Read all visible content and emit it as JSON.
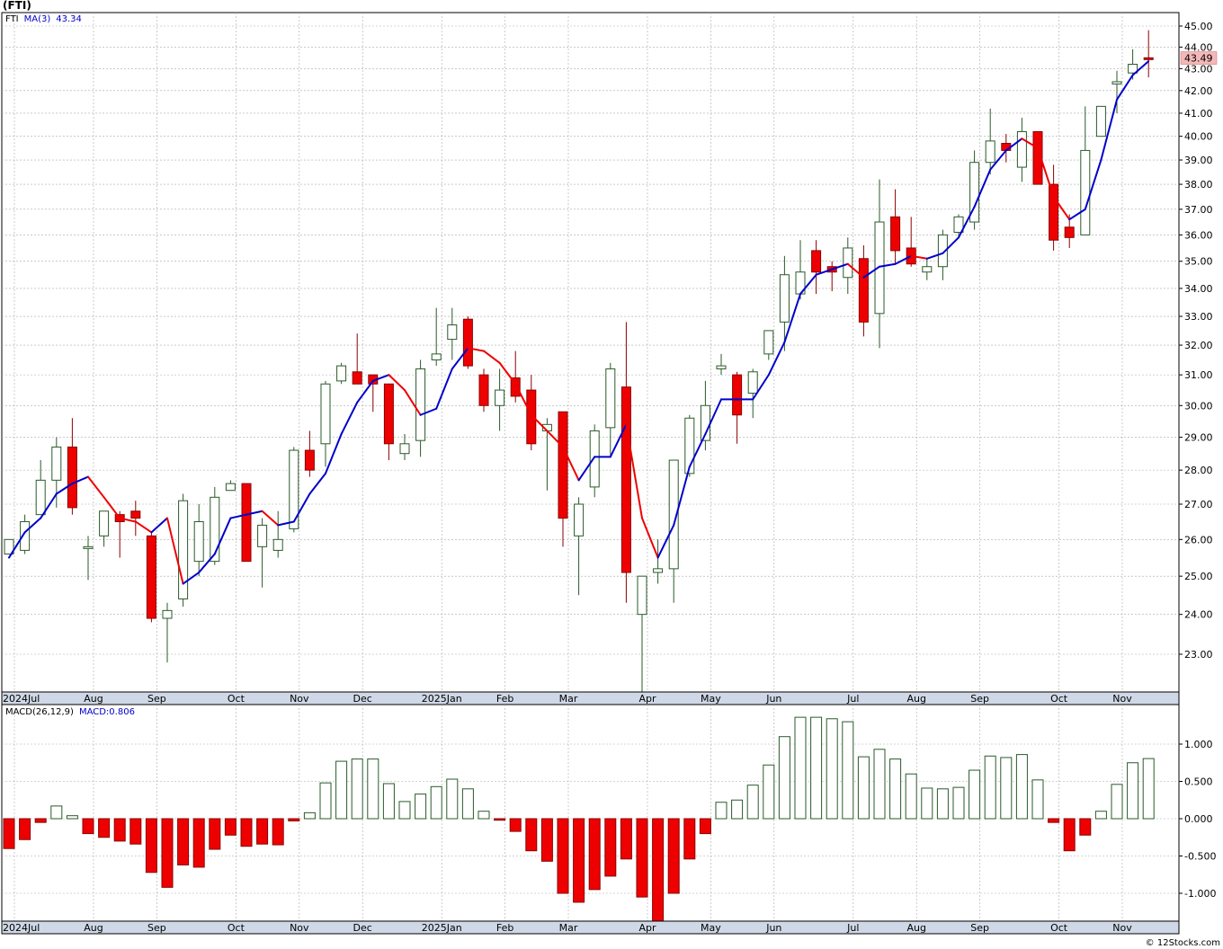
{
  "title": "(FTI)",
  "credit": "© 12Stocks.com",
  "colors": {
    "up_outline": "#2a5a2a",
    "down_fill": "#ee0000",
    "ma_up": "#0000cc",
    "ma_down": "#ee0000",
    "grid": "#aaaaaa",
    "axis_band": "#cfd8e6",
    "last_price_bg": "#f4b8b8"
  },
  "price_panel": {
    "legend_symbol": "FTI",
    "legend_ma": "MA(3)",
    "legend_ma_value": "43.34",
    "last_price_label": "43.49",
    "y_ticks": [
      "45.00",
      "44.00",
      "43.00",
      "42.00",
      "41.00",
      "40.00",
      "39.00",
      "38.00",
      "37.00",
      "36.00",
      "35.00",
      "34.00",
      "33.00",
      "32.00",
      "31.00",
      "30.00",
      "29.00",
      "28.00",
      "27.00",
      "26.00",
      "25.00",
      "24.00",
      "23.00"
    ]
  },
  "macd_panel": {
    "legend_name": "MACD(26,12,9)",
    "legend_value": "MACD:0.806",
    "y_ticks": [
      "1.000",
      "0.500",
      "0.000",
      "-0.500",
      "-1.000"
    ]
  },
  "x_axis_labels": [
    "2024Jul",
    "Aug",
    "Sep",
    "Oct",
    "Nov",
    "Dec",
    "2025Jan",
    "Feb",
    "Mar",
    "Apr",
    "May",
    "Jun",
    "Jul",
    "Aug",
    "Sep",
    "Oct",
    "Nov"
  ],
  "chart_data": [
    {
      "type": "candlestick",
      "name": "FTI weekly price",
      "interval": "weekly",
      "scale": "log",
      "ylim": [
        22.0,
        45.5
      ],
      "ohlc": [
        [
          25.6,
          26.0,
          25.6,
          26.0
        ],
        [
          25.7,
          26.7,
          25.6,
          26.5
        ],
        [
          26.7,
          28.3,
          26.7,
          27.7
        ],
        [
          27.7,
          29.0,
          26.9,
          28.7
        ],
        [
          28.7,
          29.6,
          26.7,
          26.9
        ],
        [
          25.8,
          26.1,
          24.9,
          25.8
        ],
        [
          26.1,
          26.8,
          25.8,
          26.8
        ],
        [
          26.7,
          26.8,
          25.5,
          26.5
        ],
        [
          26.8,
          27.1,
          26.1,
          26.6
        ],
        [
          26.1,
          26.2,
          23.8,
          23.9
        ],
        [
          23.9,
          24.3,
          22.8,
          24.1
        ],
        [
          24.4,
          27.3,
          24.2,
          27.1
        ],
        [
          25.4,
          27.0,
          25.0,
          26.5
        ],
        [
          25.4,
          27.5,
          25.3,
          27.2
        ],
        [
          27.4,
          27.7,
          27.4,
          27.6
        ],
        [
          27.6,
          27.6,
          25.4,
          25.4
        ],
        [
          25.8,
          26.6,
          24.7,
          26.4
        ],
        [
          25.7,
          26.8,
          25.5,
          26.0
        ],
        [
          26.3,
          28.7,
          26.2,
          28.6
        ],
        [
          28.6,
          29.2,
          27.8,
          28.0
        ],
        [
          28.8,
          30.8,
          28.1,
          30.7
        ],
        [
          30.8,
          31.4,
          30.7,
          31.3
        ],
        [
          31.1,
          32.4,
          30.7,
          30.7
        ],
        [
          31.0,
          31.0,
          29.8,
          30.7
        ],
        [
          30.7,
          30.7,
          28.3,
          28.8
        ],
        [
          28.5,
          29.1,
          28.3,
          28.8
        ],
        [
          28.9,
          31.5,
          28.4,
          31.2
        ],
        [
          31.5,
          33.3,
          31.3,
          31.7
        ],
        [
          32.2,
          33.3,
          31.5,
          32.7
        ],
        [
          32.9,
          33.0,
          31.2,
          31.3
        ],
        [
          31.0,
          31.2,
          29.8,
          30.0
        ],
        [
          30.0,
          31.2,
          29.2,
          30.5
        ],
        [
          30.9,
          31.8,
          30.1,
          30.3
        ],
        [
          30.5,
          31.0,
          28.6,
          28.8
        ],
        [
          29.2,
          29.6,
          27.4,
          29.4
        ],
        [
          29.8,
          29.8,
          25.8,
          26.6
        ],
        [
          26.1,
          27.2,
          24.5,
          27.0
        ],
        [
          27.5,
          29.4,
          27.2,
          29.2
        ],
        [
          29.3,
          31.4,
          28.4,
          31.2
        ],
        [
          30.6,
          32.8,
          24.3,
          25.1
        ],
        [
          24.0,
          25.0,
          21.8,
          25.0
        ],
        [
          25.1,
          26.0,
          24.8,
          25.2
        ],
        [
          25.2,
          28.3,
          24.3,
          28.3
        ],
        [
          27.9,
          29.7,
          27.8,
          29.6
        ],
        [
          28.9,
          30.8,
          28.6,
          30.0
        ],
        [
          31.2,
          31.7,
          31.0,
          31.3
        ],
        [
          31.0,
          31.1,
          28.8,
          29.7
        ],
        [
          30.4,
          31.2,
          29.6,
          31.1
        ],
        [
          31.7,
          32.5,
          31.5,
          32.5
        ],
        [
          32.8,
          35.2,
          31.8,
          34.5
        ],
        [
          33.8,
          35.8,
          33.6,
          34.6
        ],
        [
          35.4,
          35.8,
          33.8,
          34.6
        ],
        [
          34.8,
          35.0,
          33.9,
          34.6
        ],
        [
          34.4,
          35.9,
          33.8,
          35.5
        ],
        [
          35.1,
          35.6,
          32.3,
          32.8
        ],
        [
          33.1,
          38.2,
          31.9,
          36.5
        ],
        [
          36.7,
          37.8,
          34.9,
          35.4
        ],
        [
          35.5,
          36.7,
          34.8,
          34.9
        ],
        [
          34.6,
          35.1,
          34.3,
          34.8
        ],
        [
          34.8,
          36.2,
          34.3,
          36.0
        ],
        [
          36.1,
          36.8,
          35.9,
          36.7
        ],
        [
          36.5,
          39.4,
          36.2,
          38.9
        ],
        [
          38.9,
          41.2,
          38.4,
          39.8
        ],
        [
          39.7,
          40.1,
          38.9,
          39.4
        ],
        [
          38.7,
          40.8,
          38.1,
          40.2
        ],
        [
          40.2,
          40.2,
          38.0,
          38.0
        ],
        [
          38.0,
          38.8,
          35.4,
          35.8
        ],
        [
          36.3,
          36.8,
          35.5,
          35.9
        ],
        [
          36.0,
          41.3,
          36.0,
          39.4
        ],
        [
          40.0,
          41.3,
          40.0,
          41.3
        ],
        [
          42.3,
          42.9,
          41.0,
          42.4
        ],
        [
          42.8,
          43.9,
          42.5,
          43.2
        ],
        [
          43.5,
          44.8,
          42.6,
          43.49
        ]
      ],
      "ma3": [
        25.5,
        26.2,
        26.6,
        27.3,
        27.6,
        27.8,
        27.2,
        26.6,
        26.5,
        26.2,
        26.6,
        24.8,
        25.1,
        25.6,
        26.6,
        26.7,
        26.8,
        26.4,
        26.5,
        27.3,
        27.9,
        29.1,
        30.1,
        30.8,
        31.0,
        30.5,
        29.7,
        29.9,
        31.2,
        31.9,
        31.8,
        31.4,
        30.7,
        29.7,
        29.2,
        28.7,
        27.7,
        28.4,
        28.4,
        29.4,
        26.6,
        25.5,
        26.4,
        28.1,
        29.1,
        30.2,
        30.2,
        30.2,
        31.0,
        32.1,
        33.8,
        34.5,
        34.7,
        34.9,
        34.4,
        34.8,
        34.9,
        35.2,
        35.1,
        35.3,
        35.9,
        37.1,
        38.6,
        39.4,
        39.9,
        39.5,
        37.5,
        36.6,
        37.0,
        39.0,
        41.6,
        42.7,
        43.34
      ]
    },
    {
      "type": "bar",
      "name": "MACD(26,12,9)",
      "ylim": [
        -1.4,
        1.4
      ],
      "values": [
        -0.4,
        -0.28,
        -0.05,
        0.17,
        0.04,
        -0.2,
        -0.25,
        -0.3,
        -0.34,
        -0.72,
        -0.92,
        -0.62,
        -0.65,
        -0.41,
        -0.22,
        -0.37,
        -0.34,
        -0.35,
        -0.03,
        0.08,
        0.48,
        0.77,
        0.8,
        0.8,
        0.47,
        0.23,
        0.33,
        0.43,
        0.53,
        0.4,
        0.1,
        -0.02,
        -0.17,
        -0.43,
        -0.57,
        -1.0,
        -1.12,
        -0.95,
        -0.77,
        -0.54,
        -1.05,
        -1.38,
        -1.0,
        -0.54,
        -0.2,
        0.22,
        0.25,
        0.45,
        0.72,
        1.1,
        1.36,
        1.36,
        1.34,
        1.3,
        0.83,
        0.93,
        0.8,
        0.6,
        0.41,
        0.4,
        0.42,
        0.65,
        0.84,
        0.82,
        0.86,
        0.52,
        -0.05,
        -0.43,
        -0.22,
        0.1,
        0.46,
        0.75,
        0.806
      ]
    }
  ]
}
